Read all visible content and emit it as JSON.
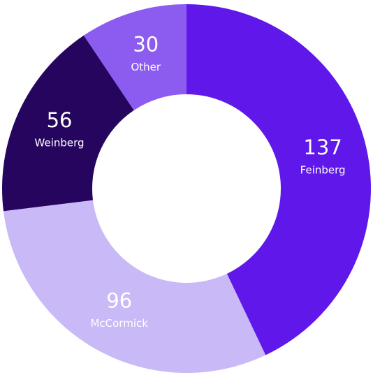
{
  "chart_data": {
    "type": "donut",
    "categories": [
      "Feinberg",
      "McCormick",
      "Weinberg",
      "Other"
    ],
    "values": [
      137,
      96,
      56,
      30
    ],
    "colors": [
      "#5f17ea",
      "#c9b9f6",
      "#26055f",
      "#8c5cf1"
    ]
  }
}
